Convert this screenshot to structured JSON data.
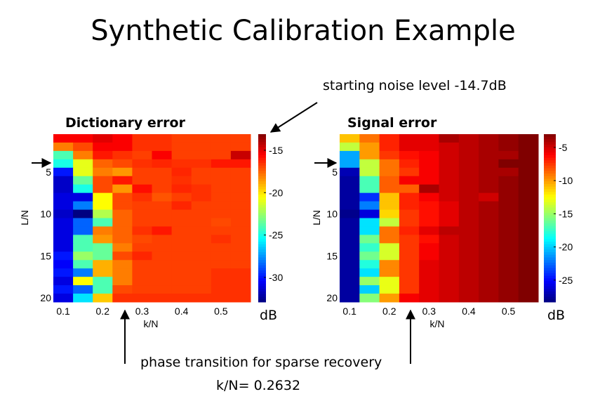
{
  "slide": {
    "title": "Synthetic Calibration Example",
    "noise_annotation": "starting noise level -14.7dB",
    "phase_annotation": "phase transition for sparse recovery",
    "phase_value": "k/N=  0.2632"
  },
  "chart_data": [
    {
      "type": "heatmap",
      "title": "Dictionary error",
      "xlabel": "k/N",
      "ylabel": "L/N",
      "colorbar_label": "dB",
      "colormap": "jet",
      "x": [
        0.1,
        0.15,
        0.2,
        0.25,
        0.3,
        0.35,
        0.4,
        0.45,
        0.5,
        0.55
      ],
      "y": [
        1,
        2,
        3,
        4,
        5,
        6,
        7,
        8,
        9,
        10,
        11,
        12,
        13,
        14,
        15,
        16,
        17,
        18,
        19,
        20
      ],
      "xticks": [
        "0.1",
        "0.2",
        "0.3",
        "0.4",
        "0.5"
      ],
      "xtick_values": [
        0.1,
        0.2,
        0.3,
        0.4,
        0.5
      ],
      "yticks": [
        "5",
        "10",
        "15",
        "20"
      ],
      "ytick_values": [
        5,
        10,
        15,
        20
      ],
      "cticks": [
        "-15",
        "-20",
        "-25",
        "-30"
      ],
      "ctick_values": [
        -15,
        -20,
        -25,
        -30
      ],
      "clim": [
        -32.9,
        -13.1
      ],
      "values": [
        [
          -15.5,
          -15.5,
          -15.0,
          -15.5,
          -16.5,
          -16.5,
          -16.8,
          -16.8,
          -16.8,
          -16.8
        ],
        [
          -18.0,
          -17.0,
          -15.5,
          -15.5,
          -16.5,
          -16.5,
          -16.8,
          -16.8,
          -16.8,
          -16.8
        ],
        [
          -24.0,
          -18.0,
          -16.0,
          -16.5,
          -16.8,
          -15.5,
          -16.8,
          -16.8,
          -16.8,
          -14.5
        ],
        [
          -25.0,
          -21.0,
          -17.5,
          -17.0,
          -16.5,
          -16.3,
          -16.5,
          -16.5,
          -16.0,
          -16.0
        ],
        [
          -30.0,
          -21.0,
          -18.0,
          -18.5,
          -16.8,
          -16.8,
          -16.3,
          -16.8,
          -16.8,
          -16.8
        ],
        [
          -31.5,
          -23.5,
          -17.0,
          -16.0,
          -16.8,
          -16.8,
          -16.5,
          -16.8,
          -16.8,
          -16.8
        ],
        [
          -31.5,
          -25.0,
          -17.0,
          -18.5,
          -15.8,
          -16.8,
          -16.3,
          -16.5,
          -16.8,
          -16.8
        ],
        [
          -31.0,
          -31.0,
          -20.5,
          -17.0,
          -16.5,
          -17.2,
          -16.8,
          -16.5,
          -16.8,
          -16.8
        ],
        [
          -31.0,
          -28.0,
          -20.5,
          -17.0,
          -16.8,
          -16.8,
          -16.3,
          -16.8,
          -16.8,
          -16.8
        ],
        [
          -31.5,
          -33.0,
          -22.0,
          -17.5,
          -16.8,
          -16.8,
          -16.8,
          -16.8,
          -16.8,
          -16.8
        ],
        [
          -31.0,
          -28.5,
          -24.0,
          -17.5,
          -16.8,
          -16.8,
          -16.8,
          -16.8,
          -17.0,
          -16.8
        ],
        [
          -31.0,
          -28.5,
          -18.0,
          -17.5,
          -16.5,
          -16.0,
          -16.8,
          -16.8,
          -16.8,
          -16.8
        ],
        [
          -31.0,
          -24.0,
          -18.5,
          -17.5,
          -17.0,
          -16.8,
          -16.8,
          -16.8,
          -16.5,
          -16.8
        ],
        [
          -31.0,
          -24.0,
          -23.5,
          -18.0,
          -16.8,
          -16.8,
          -16.8,
          -16.8,
          -16.8,
          -16.8
        ],
        [
          -30.0,
          -22.5,
          -23.5,
          -17.0,
          -16.3,
          -16.8,
          -16.8,
          -16.8,
          -16.8,
          -16.8
        ],
        [
          -30.5,
          -24.0,
          -19.0,
          -18.0,
          -16.8,
          -16.8,
          -16.8,
          -16.8,
          -16.8,
          -16.8
        ],
        [
          -30.0,
          -28.0,
          -19.0,
          -18.0,
          -16.8,
          -16.8,
          -16.8,
          -16.8,
          -16.5,
          -16.5
        ],
        [
          -31.0,
          -20.5,
          -24.0,
          -18.0,
          -16.8,
          -16.8,
          -16.8,
          -16.8,
          -16.5,
          -16.5
        ],
        [
          -30.0,
          -28.5,
          -24.0,
          -17.0,
          -16.8,
          -16.8,
          -16.8,
          -16.8,
          -16.5,
          -16.5
        ],
        [
          -31.0,
          -26.0,
          -19.5,
          -16.5,
          -16.5,
          -16.5,
          -16.5,
          -16.5,
          -16.5,
          -16.5
        ]
      ]
    },
    {
      "type": "heatmap",
      "title": "Signal error",
      "xlabel": "k/N",
      "ylabel": "L/N",
      "colorbar_label": "dB",
      "colormap": "jet",
      "x": [
        0.1,
        0.15,
        0.2,
        0.25,
        0.3,
        0.35,
        0.4,
        0.45,
        0.5,
        0.55
      ],
      "y": [
        1,
        2,
        3,
        4,
        5,
        6,
        7,
        8,
        9,
        10,
        11,
        12,
        13,
        14,
        15,
        16,
        17,
        18,
        19,
        20
      ],
      "xticks": [
        "0.1",
        "0.2",
        "0.3",
        "0.4",
        "0.5"
      ],
      "xtick_values": [
        0.1,
        0.2,
        0.3,
        0.4,
        0.5
      ],
      "yticks": [
        "5",
        "10",
        "15",
        "20"
      ],
      "ytick_values": [
        5,
        10,
        15,
        20
      ],
      "cticks": [
        "-5",
        "-10",
        "-15",
        "-20",
        "-25"
      ],
      "ctick_values": [
        -5,
        -10,
        -15,
        -20,
        -25
      ],
      "clim": [
        -28.3,
        -3
      ],
      "values": [
        [
          -11.0,
          -9.0,
          -7.0,
          -5.5,
          -5.5,
          -4.0,
          -4.5,
          -4.0,
          -3.5,
          -3.0
        ],
        [
          -14.0,
          -10.0,
          -7.0,
          -5.5,
          -5.5,
          -5.0,
          -4.5,
          -4.0,
          -3.5,
          -3.0
        ],
        [
          -21.0,
          -10.0,
          -7.5,
          -6.5,
          -6.0,
          -5.0,
          -4.5,
          -4.0,
          -4.0,
          -3.0
        ],
        [
          -21.0,
          -14.0,
          -9.0,
          -7.0,
          -6.0,
          -5.0,
          -4.5,
          -4.0,
          -2.5,
          -3.0
        ],
        [
          -27.0,
          -14.0,
          -9.0,
          -7.5,
          -6.0,
          -5.0,
          -4.5,
          -4.0,
          -4.0,
          -3.0
        ],
        [
          -27.5,
          -17.0,
          -8.5,
          -6.0,
          -6.0,
          -5.0,
          -4.5,
          -4.0,
          -3.5,
          -3.0
        ],
        [
          -27.5,
          -17.0,
          -8.5,
          -8.5,
          -4.0,
          -5.0,
          -4.5,
          -4.0,
          -3.5,
          -3.0
        ],
        [
          -27.5,
          -24.0,
          -11.0,
          -7.0,
          -6.0,
          -5.0,
          -4.5,
          -5.0,
          -3.5,
          -3.0
        ],
        [
          -27.5,
          -22.0,
          -11.0,
          -7.0,
          -6.5,
          -5.5,
          -4.5,
          -4.0,
          -3.5,
          -3.0
        ],
        [
          -28.0,
          -26.0,
          -11.5,
          -7.5,
          -6.5,
          -5.5,
          -4.5,
          -4.0,
          -3.5,
          -3.0
        ],
        [
          -27.5,
          -19.5,
          -14.0,
          -7.5,
          -6.5,
          -5.5,
          -4.5,
          -4.0,
          -3.5,
          -3.0
        ],
        [
          -27.5,
          -19.5,
          -9.0,
          -7.0,
          -5.5,
          -4.5,
          -4.5,
          -4.0,
          -3.5,
          -3.0
        ],
        [
          -27.5,
          -16.0,
          -9.0,
          -7.5,
          -6.5,
          -5.0,
          -4.5,
          -4.0,
          -3.5,
          -3.0
        ],
        [
          -27.5,
          -17.5,
          -13.5,
          -7.5,
          -6.0,
          -5.0,
          -4.5,
          -4.0,
          -3.5,
          -3.0
        ],
        [
          -27.5,
          -16.0,
          -13.5,
          -7.5,
          -6.0,
          -5.0,
          -4.5,
          -4.0,
          -3.5,
          -3.0
        ],
        [
          -27.5,
          -18.0,
          -9.5,
          -7.5,
          -5.5,
          -5.0,
          -4.5,
          -4.0,
          -3.5,
          -3.0
        ],
        [
          -27.5,
          -19.5,
          -9.5,
          -7.5,
          -5.5,
          -5.0,
          -4.5,
          -4.0,
          -3.5,
          -3.0
        ],
        [
          -27.5,
          -15.0,
          -13.0,
          -7.5,
          -5.5,
          -5.0,
          -4.5,
          -4.0,
          -3.5,
          -3.0
        ],
        [
          -27.5,
          -20.0,
          -13.0,
          -7.5,
          -5.5,
          -5.0,
          -4.5,
          -4.0,
          -3.5,
          -3.0
        ],
        [
          -27.5,
          -15.5,
          -10.0,
          -6.0,
          -5.5,
          -5.0,
          -4.5,
          -4.0,
          -3.5,
          -3.0
        ]
      ]
    }
  ]
}
